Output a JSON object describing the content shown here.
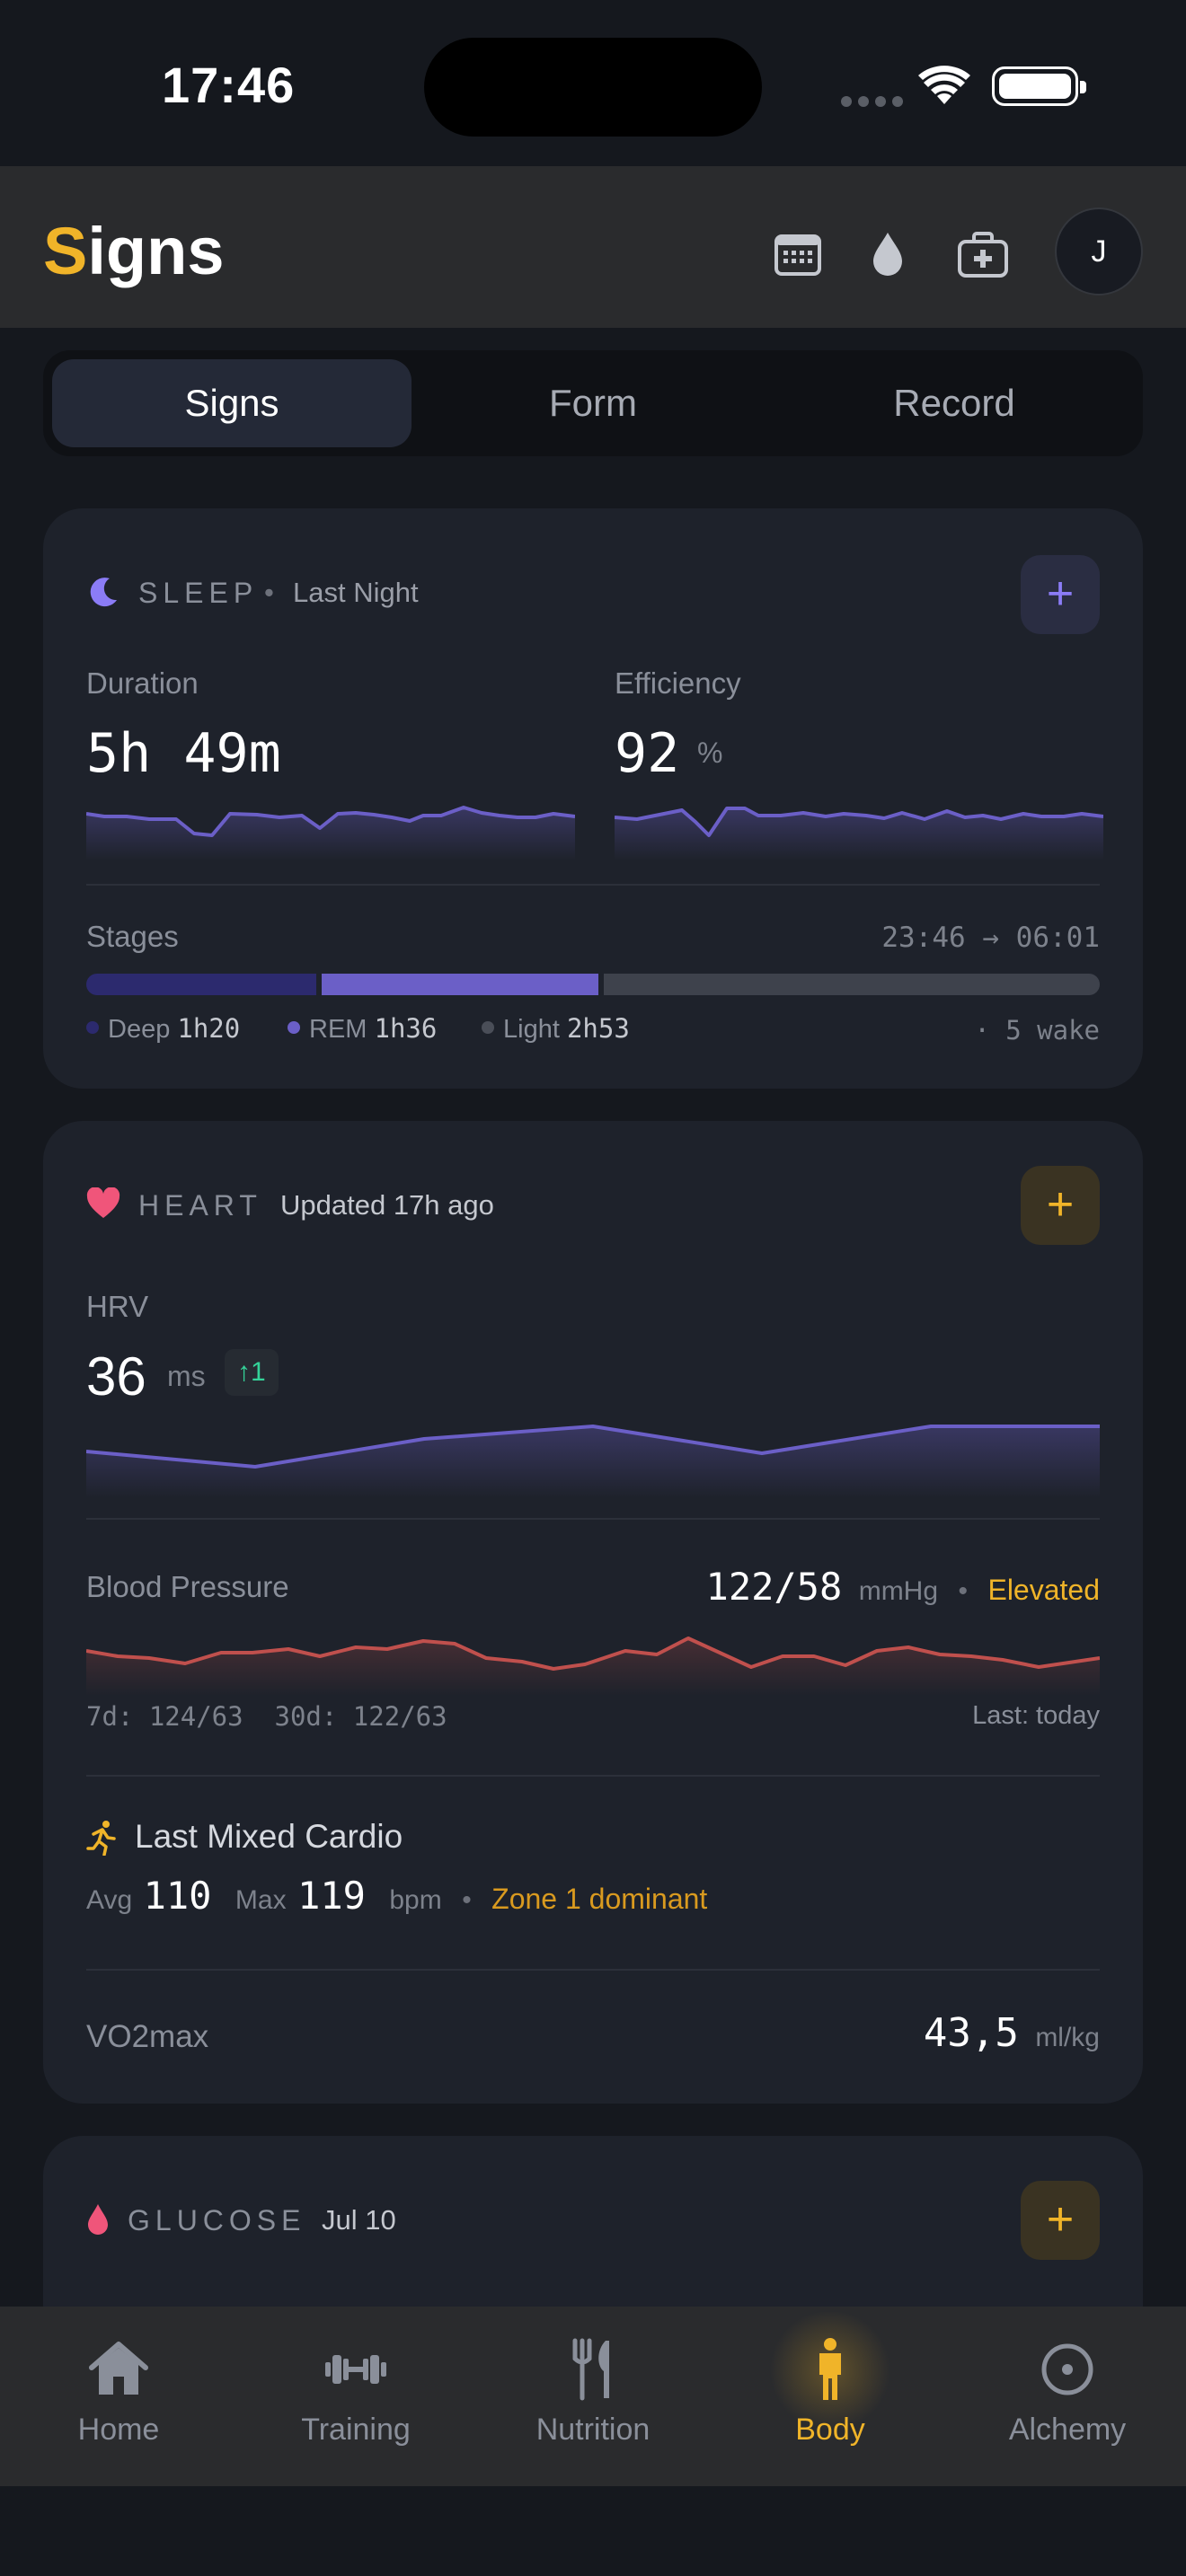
{
  "status": {
    "time": "17:46"
  },
  "header": {
    "title_first": "S",
    "title_rest": "igns",
    "avatar": "J",
    "icons": [
      "calendar-icon",
      "drop-icon",
      "medkit-icon"
    ]
  },
  "tabs": [
    {
      "label": "Signs",
      "active": true
    },
    {
      "label": "Form",
      "active": false
    },
    {
      "label": "Record",
      "active": false
    }
  ],
  "sleep": {
    "title": "SLEEP",
    "subtitle": "Last Night",
    "add": "+",
    "duration_label": "Duration",
    "duration_value": "5h 49m",
    "efficiency_label": "Efficiency",
    "efficiency_value": "92",
    "efficiency_unit": "%",
    "stages_label": "Stages",
    "time_range": "23:46 → 06:01",
    "stages": [
      {
        "name": "Deep",
        "value": "1h20",
        "color": "#2c2a6e"
      },
      {
        "name": "REM",
        "value": "1h36",
        "color": "#6b5fc7"
      },
      {
        "name": "Light",
        "value": "2h53",
        "color": "#3e424c"
      }
    ],
    "wake": "· 5 wake"
  },
  "heart": {
    "title": "HEART",
    "subtitle": "Updated 17h ago",
    "add": "+",
    "hrv_label": "HRV",
    "hrv_value": "36",
    "hrv_unit": "ms",
    "hrv_delta": "↑1",
    "bp_label": "Blood Pressure",
    "bp_value": "122/58",
    "bp_unit": "mmHg",
    "bp_status": "Elevated",
    "bp_avgs": "7d: 124/63  30d: 122/63",
    "bp_last": "Last: today",
    "cardio_title": "Last Mixed Cardio",
    "avg_label": "Avg",
    "avg_value": "110",
    "max_label": "Max",
    "max_value": "119",
    "bpm": "bpm",
    "zone": "Zone 1 dominant",
    "vo2_label": "VO2max",
    "vo2_value": "43,5",
    "vo2_unit": "ml/kg"
  },
  "glucose": {
    "title": "GLUCOSE",
    "subtitle": "Jul 10",
    "add": "+"
  },
  "nav": [
    {
      "label": "Home",
      "icon": "home-icon",
      "active": false
    },
    {
      "label": "Training",
      "icon": "dumbbell-icon",
      "active": false
    },
    {
      "label": "Nutrition",
      "icon": "fork-knife-icon",
      "active": false
    },
    {
      "label": "Body",
      "icon": "person-icon",
      "active": true
    },
    {
      "label": "Alchemy",
      "icon": "circle-dot-icon",
      "active": false
    }
  ],
  "colors": {
    "accent": "#f0b429",
    "sleep": "#8b7cf6",
    "heart": "#f0557a",
    "bp_line": "#c0504d",
    "hrv_line": "#6b5fc7"
  }
}
